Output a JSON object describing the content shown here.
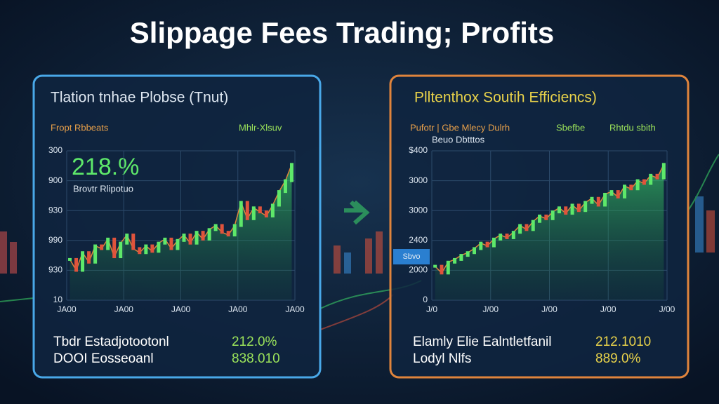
{
  "header": {
    "title": "Slippage Fees Trading; Profits"
  },
  "panels": [
    {
      "title": "Tlation tnhae Plobse (Tnut)",
      "legend": [
        "Fropt Rbbeats",
        "Mhlr-Xlsuv"
      ],
      "big_value": "218.%",
      "big_caption": "Brovtr Rlipotuo",
      "y_labels": [
        "300",
        "900",
        "930",
        "990",
        "930",
        "10"
      ],
      "x_labels": [
        "JA00",
        "JA00",
        "JA00",
        "JA00",
        "JA00"
      ],
      "ylim": [
        0,
        110
      ],
      "values": [
        30,
        22,
        35,
        28,
        40,
        38,
        45,
        32,
        42,
        48,
        38,
        35,
        40,
        36,
        42,
        45,
        38,
        44,
        48,
        42,
        50,
        45,
        52,
        55,
        50,
        48,
        55,
        72,
        60,
        68,
        65,
        62,
        70,
        80,
        88,
        100
      ],
      "rows": [
        [
          "Tbdr Estadjotootonl",
          "212.0%"
        ],
        [
          "DOOI Eosseoanl",
          "838.010"
        ]
      ]
    },
    {
      "title": "Plltenthox Soutih Efficiencs)",
      "legend": [
        "Pufotr | Gbe Mlecy Dulrh",
        "Sbefbe",
        "Rhtdu sbith"
      ],
      "big_caption": "Beuo Dbtttos",
      "side_label": "Sbvo",
      "y_labels": [
        "$400",
        "3000",
        "3000",
        "2400",
        "2000",
        "0"
      ],
      "x_labels": [
        "J/0",
        "J/00",
        "J/00",
        "J/00",
        "J/00"
      ],
      "ylim": [
        0,
        110
      ],
      "values": [
        25,
        20,
        28,
        30,
        33,
        35,
        38,
        42,
        40,
        45,
        48,
        46,
        50,
        55,
        52,
        58,
        62,
        60,
        65,
        68,
        64,
        70,
        66,
        72,
        75,
        70,
        78,
        80,
        76,
        84,
        82,
        88,
        86,
        92,
        90,
        100
      ],
      "rows": [
        [
          "Elamly Elie Ealntletfanil",
          "212.1010"
        ],
        [
          "Lodyl Nlfs",
          "889.0%"
        ]
      ]
    }
  ]
}
